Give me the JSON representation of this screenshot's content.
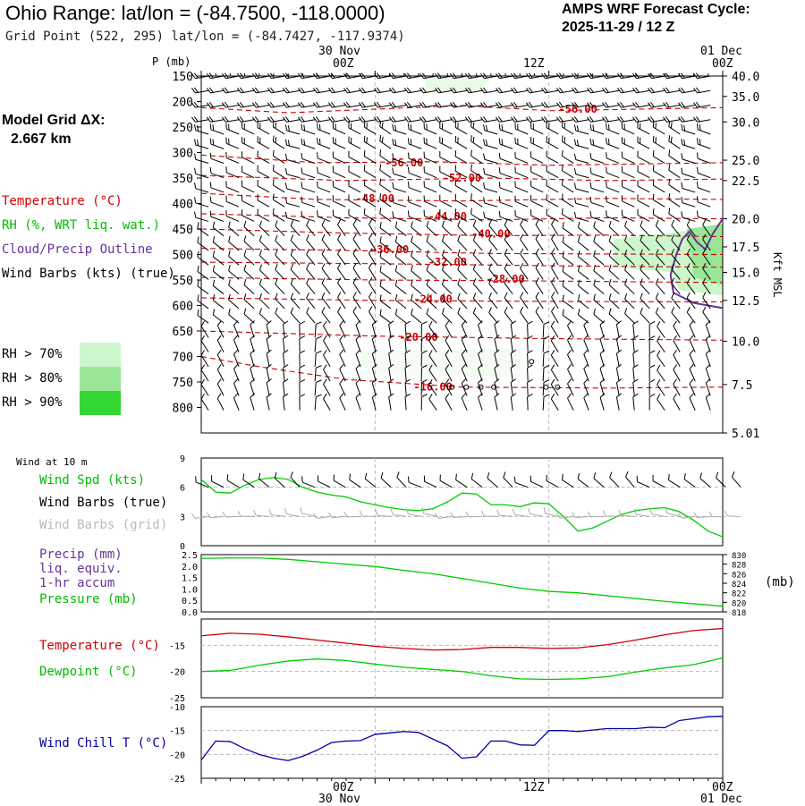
{
  "header": {
    "title": "Ohio Range:  lat/lon = (-84.7500, -118.0000)",
    "subtitle": "Grid Point (522, 295) lat/lon = (-84.7427, -117.9374)",
    "cycle_label": "AMPS WRF Forecast Cycle:",
    "cycle_value": "2025-11-29 / 12  Z"
  },
  "left_panel": {
    "model_grid_label": "Model Grid ΔX:",
    "model_grid_value": "2.667 km",
    "temperature_legend": "Temperature (°C)",
    "rh_legend": "RH (%, WRT liq. wat.)",
    "cloud_legend": "Cloud/Precip Outline",
    "wind_legend": "Wind Barbs (kts) (true)",
    "rh_thresholds": [
      "RH > 70%",
      "RH > 80%",
      "RH > 90%"
    ],
    "rh_colors": [
      "#ccf7cc",
      "#99e699",
      "#33d633"
    ]
  },
  "time_axis": {
    "top_date_labels": [
      "30 Nov",
      "01 Dec"
    ],
    "top_time_labels": [
      "00Z",
      "12Z",
      "00Z"
    ],
    "bottom_time_labels": [
      "00Z",
      "12Z",
      "00Z"
    ],
    "bottom_date_labels": [
      "30 Nov",
      "01 Dec"
    ]
  },
  "colors": {
    "temperature": "#cc0000",
    "green": "#00cc00",
    "cloud": "#663399",
    "wind_chill": "#0000aa",
    "grid_barbs": "#aaaaaa"
  },
  "chart_data": [
    {
      "type": "heatmap",
      "name": "sounding",
      "p_label": "P (mb)",
      "p_ticks": [
        150,
        200,
        250,
        300,
        350,
        400,
        450,
        500,
        550,
        600,
        650,
        700,
        750,
        800
      ],
      "ylim": [
        150,
        850
      ],
      "height_label": "Kft MSL",
      "height_ticks": [
        {
          "p": 150,
          "label": "40.0"
        },
        {
          "p": 190,
          "label": "35.0"
        },
        {
          "p": 240,
          "label": "30.0"
        },
        {
          "p": 315,
          "label": "25.0"
        },
        {
          "p": 355,
          "label": "22.5"
        },
        {
          "p": 430,
          "label": "20.0"
        },
        {
          "p": 485,
          "label": "17.5"
        },
        {
          "p": 535,
          "label": "15.0"
        },
        {
          "p": 590,
          "label": "12.5"
        },
        {
          "p": 670,
          "label": "10.0"
        },
        {
          "p": 755,
          "label": "7.5"
        },
        {
          "p": 850,
          "label": "5.01"
        }
      ],
      "isotherms": [
        {
          "label": "-56.00",
          "lx": 14,
          "lp": 320,
          "pts": [
            [
              0,
              305
            ],
            [
              8,
              320
            ],
            [
              16,
              318
            ],
            [
              24,
              325
            ],
            [
              36,
              320
            ]
          ]
        },
        {
          "label": "-52.00",
          "lx": 18,
          "lp": 350,
          "pts": [
            [
              0,
              345
            ],
            [
              10,
              355
            ],
            [
              20,
              350
            ],
            [
              28,
              355
            ],
            [
              36,
              352
            ]
          ]
        },
        {
          "label": "-48.00",
          "lx": 12,
          "lp": 390,
          "pts": [
            [
              0,
              380
            ],
            [
              8,
              392
            ],
            [
              18,
              395
            ],
            [
              28,
              390
            ],
            [
              36,
              392
            ]
          ]
        },
        {
          "label": "-44.00",
          "lx": 17,
          "lp": 425,
          "pts": [
            [
              0,
              420
            ],
            [
              10,
              428
            ],
            [
              20,
              432
            ],
            [
              28,
              428
            ],
            [
              36,
              430
            ]
          ]
        },
        {
          "label": "-40.00",
          "lx": 20,
          "lp": 460,
          "pts": [
            [
              0,
              450
            ],
            [
              10,
              458
            ],
            [
              20,
              463
            ],
            [
              28,
              462
            ],
            [
              36,
              465
            ]
          ]
        },
        {
          "label": "-36.00",
          "lx": 13,
          "lp": 490,
          "pts": [
            [
              0,
              488
            ],
            [
              10,
              492
            ],
            [
              20,
              498
            ],
            [
              36,
              500
            ]
          ]
        },
        {
          "label": "-32.00",
          "lx": 17,
          "lp": 515,
          "pts": [
            [
              0,
              515
            ],
            [
              12,
              518
            ],
            [
              24,
              522
            ],
            [
              36,
              525
            ]
          ]
        },
        {
          "label": "-28.00",
          "lx": 21,
          "lp": 548,
          "pts": [
            [
              0,
              545
            ],
            [
              12,
              550
            ],
            [
              24,
              552
            ],
            [
              36,
              555
            ]
          ]
        },
        {
          "label": "-24.00",
          "lx": 16,
          "lp": 588,
          "pts": [
            [
              0,
              585
            ],
            [
              12,
              590
            ],
            [
              24,
              592
            ],
            [
              36,
              593
            ]
          ]
        },
        {
          "label": "-20.00",
          "lx": 15,
          "lp": 662,
          "pts": [
            [
              0,
              650
            ],
            [
              12,
              660
            ],
            [
              24,
              665
            ],
            [
              36,
              668
            ]
          ]
        },
        {
          "label": "-16.00",
          "lx": 16,
          "lp": 760,
          "pts": [
            [
              0,
              700
            ],
            [
              4,
              720
            ],
            [
              10,
              745
            ],
            [
              18,
              760
            ],
            [
              28,
              762
            ],
            [
              36,
              760
            ]
          ]
        }
      ],
      "upper_isotherm": {
        "label": "-56.00",
        "lx": 26,
        "lp": 215,
        "pts": [
          [
            0,
            212
          ],
          [
            6,
            222
          ],
          [
            12,
            215
          ],
          [
            18,
            208
          ],
          [
            24,
            218
          ],
          [
            30,
            215
          ],
          [
            36,
            212
          ]
        ]
      }
    },
    {
      "type": "line",
      "name": "wind_10m",
      "panel_label": "Wind at 10 m",
      "legend": [
        "Wind Spd (kts)",
        "Wind Barbs (true)",
        "Wind Barbs (grid)"
      ],
      "y_ticks": [
        "9",
        "6",
        "3",
        "0"
      ],
      "ylim": [
        0,
        9
      ],
      "x": [
        0,
        1,
        2,
        3,
        4,
        5,
        6,
        7,
        8,
        9,
        10,
        11,
        12,
        13,
        14,
        15,
        16,
        17,
        18,
        19,
        20,
        21,
        22,
        23,
        24,
        25,
        26,
        27,
        28,
        29,
        30,
        31,
        32,
        33,
        34,
        35,
        36
      ],
      "values": [
        6.8,
        5.5,
        5.4,
        6.2,
        6.8,
        7.0,
        6.8,
        6.0,
        5.5,
        5.2,
        5.0,
        4.5,
        4.2,
        3.9,
        3.7,
        3.6,
        3.8,
        4.5,
        5.4,
        5.3,
        4.2,
        4.2,
        4.0,
        4.4,
        4.3,
        3.0,
        1.5,
        1.8,
        2.5,
        3.2,
        3.6,
        3.8,
        3.9,
        3.5,
        2.6,
        1.5,
        0.9
      ]
    },
    {
      "type": "line",
      "name": "precip_pressure",
      "legend": [
        "Precip (mm)",
        "liq. equiv.",
        "1-hr accum",
        "Pressure (mb)"
      ],
      "precip_ticks": [
        "2.5",
        "2.0",
        "1.5",
        "1.0",
        "0.5",
        "0.0"
      ],
      "pressure_ticks": [
        "830",
        "828",
        "826",
        "824",
        "822",
        "820",
        "818"
      ],
      "pressure_unit": "(mb)",
      "ylim_pressure": [
        818,
        830
      ],
      "x": [
        0,
        2,
        4,
        6,
        8,
        10,
        12,
        14,
        16,
        18,
        20,
        22,
        24,
        26,
        28,
        30,
        32,
        34,
        36
      ],
      "pressure": [
        829.2,
        829.3,
        829.3,
        829.0,
        828.5,
        828.0,
        827.5,
        826.7,
        826.0,
        825.0,
        824.0,
        823.0,
        822.3,
        822.0,
        821.4,
        820.8,
        820.2,
        819.7,
        819.2
      ]
    },
    {
      "type": "line",
      "name": "temp_dewpoint",
      "legend": [
        "Temperature (°C)",
        "Dewpoint (°C)"
      ],
      "y_ticks": [
        "-15",
        "-20",
        "-25"
      ],
      "ylim": [
        -25,
        -10
      ],
      "x": [
        0,
        2,
        4,
        6,
        8,
        10,
        12,
        14,
        16,
        18,
        20,
        22,
        24,
        26,
        28,
        30,
        32,
        34,
        36
      ],
      "temperature": [
        -13.2,
        -12.7,
        -12.9,
        -13.4,
        -14.0,
        -14.6,
        -15.2,
        -15.6,
        -15.9,
        -15.8,
        -15.4,
        -15.4,
        -15.6,
        -15.5,
        -14.9,
        -14.0,
        -13.0,
        -12.2,
        -11.8
      ],
      "dewpoint": [
        -20.0,
        -19.8,
        -18.8,
        -18.0,
        -17.6,
        -17.9,
        -18.6,
        -19.2,
        -19.6,
        -20.0,
        -20.8,
        -21.4,
        -21.5,
        -21.4,
        -21.0,
        -20.1,
        -19.3,
        -18.7,
        -17.4
      ]
    },
    {
      "type": "line",
      "name": "wind_chill",
      "legend": [
        "Wind Chill T (°C)"
      ],
      "y_ticks": [
        "-10",
        "-15",
        "-20",
        "-25"
      ],
      "ylim": [
        -25,
        -10
      ],
      "x": [
        0,
        1,
        2,
        3,
        4,
        5,
        6,
        7,
        8,
        9,
        10,
        11,
        12,
        13,
        14,
        15,
        16,
        17,
        18,
        19,
        20,
        21,
        22,
        23,
        24,
        25,
        26,
        27,
        28,
        29,
        30,
        31,
        32,
        33,
        34,
        35,
        36
      ],
      "values": [
        -21.2,
        -17.2,
        -17.3,
        -18.8,
        -20.0,
        -20.8,
        -21.3,
        -20.4,
        -19.1,
        -17.5,
        -17.2,
        -17.1,
        -15.8,
        -15.5,
        -15.2,
        -15.4,
        -16.8,
        -18.2,
        -20.8,
        -20.5,
        -17.2,
        -17.2,
        -18.0,
        -18.1,
        -15.0,
        -15.0,
        -15.2,
        -14.9,
        -14.6,
        -14.6,
        -14.6,
        -14.3,
        -14.4,
        -12.9,
        -12.5,
        -12.1,
        -12.0
      ]
    }
  ]
}
